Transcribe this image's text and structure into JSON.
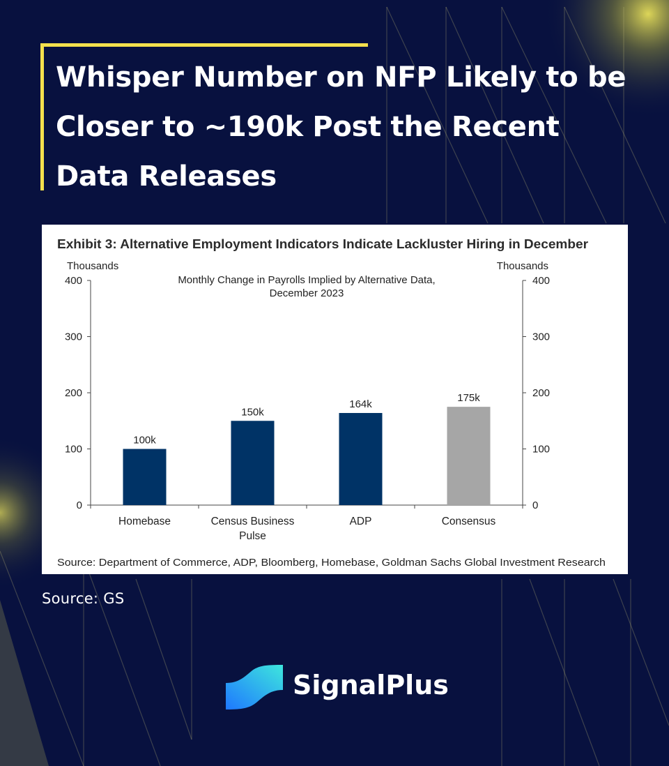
{
  "header": {
    "title": "Whisper Number on NFP Likely to be Closer to ~190k Post the Recent Data Releases"
  },
  "exhibit": {
    "title": "Exhibit 3: Alternative Employment Indicators Indicate Lackluster Hiring in December",
    "source": "Source: Department of Commerce, ADP, Bloomberg, Homebase, Goldman Sachs Global Investment Research"
  },
  "chart_data": {
    "type": "bar",
    "title": "Monthly Change  in Payrolls Implied  by Alternative  Data,",
    "subtitle": "December  2023",
    "categories": [
      "Homebase",
      "Census Business Pulse",
      "ADP",
      "Consensus"
    ],
    "category_lines": [
      [
        "Homebase"
      ],
      [
        "Census Business",
        "Pulse"
      ],
      [
        "ADP"
      ],
      [
        "Consensus"
      ]
    ],
    "values": [
      100,
      150,
      164,
      175
    ],
    "data_labels": [
      "100k",
      "150k",
      "164k",
      "175k"
    ],
    "ylim": [
      0,
      400
    ],
    "yticks": [
      0,
      100,
      200,
      300,
      400
    ],
    "ylabel_left": "Thousands",
    "ylabel_right": "Thousands",
    "grid": false,
    "colors": [
      "#003366",
      "#003366",
      "#003366",
      "#a6a6a6"
    ]
  },
  "caption": {
    "source": "Source: GS"
  },
  "brand": {
    "name": "SignalPlus"
  },
  "colors": {
    "background": "#08113f",
    "accent": "#f4e04d",
    "bar_primary": "#003366",
    "bar_consensus": "#a6a6a6"
  }
}
